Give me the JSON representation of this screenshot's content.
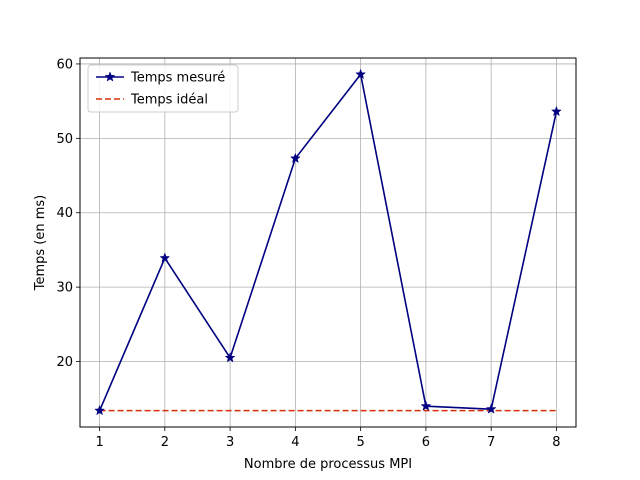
{
  "chart_data": {
    "type": "line",
    "xlabel": "Nombre de processus MPI",
    "ylabel": "Temps (en ms)",
    "x": [
      1,
      2,
      3,
      4,
      5,
      6,
      7,
      8
    ],
    "xlim": [
      0.7,
      8.3
    ],
    "ylim": [
      11.2,
      60.8
    ],
    "xticks": [
      1,
      2,
      3,
      4,
      5,
      6,
      7,
      8
    ],
    "yticks": [
      20,
      30,
      40,
      50,
      60
    ],
    "grid": true,
    "legend_position": "top-left",
    "series": [
      {
        "name": "Temps mesuré",
        "values": [
          13.4,
          33.9,
          20.5,
          47.3,
          58.6,
          14.0,
          13.6,
          53.6
        ],
        "color": "#000080",
        "style": "solid",
        "marker": "star"
      },
      {
        "name": "Temps idéal",
        "values": [
          13.4,
          13.4,
          13.4,
          13.4,
          13.4,
          13.4,
          13.4,
          13.4
        ],
        "color": "#d62e0a",
        "style": "dashed",
        "marker": "none"
      }
    ]
  }
}
